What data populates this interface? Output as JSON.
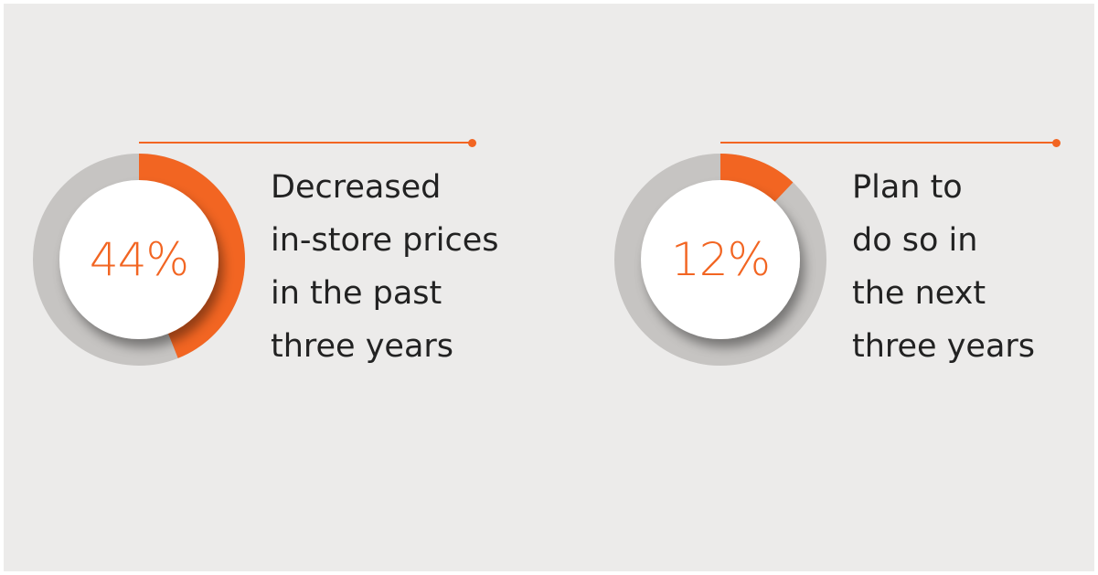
{
  "colors": {
    "accent": "#f26522",
    "ring_track": "#c6c4c2",
    "background": "#ecebea",
    "text": "#222222"
  },
  "chart_data": [
    {
      "type": "pie",
      "variant": "donut",
      "value": 44,
      "value_label": "44%",
      "label_lines": [
        "Decreased",
        "in-store prices",
        "in the past",
        "three years"
      ]
    },
    {
      "type": "pie",
      "variant": "donut",
      "value": 12,
      "value_label": "12%",
      "label_lines": [
        "Plan to",
        "do so in",
        "the next",
        "three years"
      ]
    }
  ]
}
